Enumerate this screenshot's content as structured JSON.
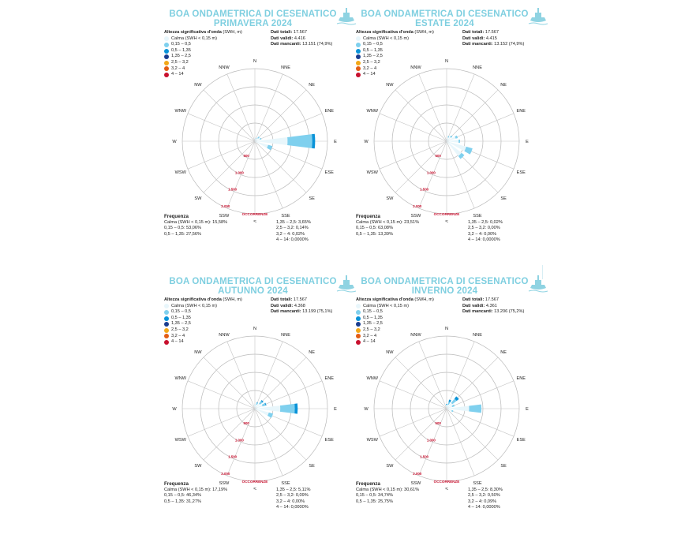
{
  "chart_data": [
    {
      "type": "wind-rose",
      "title_line1": "BOA ONDAMETRICA DI CESENATICO",
      "title_line2": "PRIMAVERA 2024",
      "legend_title": "Altezza significativa d'onda",
      "legend_unit": "(SWH, m)",
      "classes": [
        {
          "label": "Calma (SWH < 0,15 m)",
          "color": "#e8f6fb"
        },
        {
          "label": "0,15 – 0,5",
          "color": "#7fd0ee"
        },
        {
          "label": "0,5 – 1,35",
          "color": "#0a93d8"
        },
        {
          "label": "1,35 – 2,5",
          "color": "#1a3d8f"
        },
        {
          "label": "2,5 – 3,2",
          "color": "#f3a817"
        },
        {
          "label": "3,2 – 4",
          "color": "#e35d14"
        },
        {
          "label": "4 – 14",
          "color": "#c8102e"
        }
      ],
      "dati_totali_label": "Dati totali:",
      "dati_totali": "17.567",
      "dati_validi_label": "Dati validi:",
      "dati_validi": "4.416",
      "dati_mancanti_label": "Dati mancanti:",
      "dati_mancanti": "13.151 (74,9%)",
      "directions": [
        "N",
        "NNE",
        "NE",
        "ENE",
        "E",
        "ESE",
        "SE",
        "SSE",
        "S",
        "SSW",
        "SW",
        "WSW",
        "W",
        "WNW",
        "NW",
        "NNW"
      ],
      "radial_labels": [
        "500",
        "1.000",
        "1.500",
        "2.000"
      ],
      "radial_title": "OCCORRENZE",
      "rmax": 2000,
      "sectors": [
        {
          "dir": "N",
          "segments": [
            40,
            10
          ]
        },
        {
          "dir": "NNE",
          "segments": [
            70,
            25
          ]
        },
        {
          "dir": "NE",
          "segments": [
            110,
            55
          ]
        },
        {
          "dir": "ENE",
          "segments": [
            150,
            40
          ]
        },
        {
          "dir": "E",
          "segments": [
            900,
            680,
            80
          ]
        },
        {
          "dir": "ESE",
          "segments": [
            380,
            120
          ]
        },
        {
          "dir": "SE",
          "segments": [
            60
          ]
        },
        {
          "dir": "SSE",
          "segments": [
            30
          ]
        },
        {
          "dir": "S",
          "segments": [
            20
          ]
        },
        {
          "dir": "SSW",
          "segments": [
            10
          ]
        },
        {
          "dir": "SW",
          "segments": [
            10
          ]
        },
        {
          "dir": "WSW",
          "segments": [
            10
          ]
        },
        {
          "dir": "W",
          "segments": [
            15
          ]
        },
        {
          "dir": "WNW",
          "segments": [
            10
          ]
        },
        {
          "dir": "NW",
          "segments": [
            15
          ]
        },
        {
          "dir": "NNW",
          "segments": [
            20
          ]
        }
      ],
      "freq_title": "Frequenza",
      "freq": [
        "Calma (SWH < 0,15 m): 15,58%",
        "0,15 – 0,5: 53,06%",
        "0,5 – 1,35: 27,56%",
        "1,35 – 2,5: 3,65%",
        "2,5 – 3,2: 0,14%",
        "3,2 – 4: 0,02%",
        "4 – 14: 0,0000%"
      ]
    },
    {
      "type": "wind-rose",
      "title_line1": "BOA ONDAMETRICA DI CESENATICO",
      "title_line2": "ESTATE 2024",
      "legend_title": "Altezza significativa d'onda",
      "legend_unit": "(SWH, m)",
      "classes": [
        {
          "label": "Calma (SWH < 0,15 m)",
          "color": "#e8f6fb"
        },
        {
          "label": "0,15 – 0,5",
          "color": "#7fd0ee"
        },
        {
          "label": "0,5 – 1,35",
          "color": "#0a93d8"
        },
        {
          "label": "1,35 – 2,5",
          "color": "#1a3d8f"
        },
        {
          "label": "2,5 – 3,2",
          "color": "#f3a817"
        },
        {
          "label": "3,2 – 4",
          "color": "#e35d14"
        },
        {
          "label": "4 – 14",
          "color": "#c8102e"
        }
      ],
      "dati_totali_label": "Dati totali:",
      "dati_totali": "17.567",
      "dati_validi_label": "Dati validi:",
      "dati_validi": "4.415",
      "dati_mancanti_label": "Dati mancanti:",
      "dati_mancanti": "13.152 (74,9%)",
      "directions": [
        "N",
        "NNE",
        "NE",
        "ENE",
        "E",
        "ESE",
        "SE",
        "SSE",
        "S",
        "SSW",
        "SW",
        "WSW",
        "W",
        "WNW",
        "NW",
        "NNW"
      ],
      "radial_labels": [
        "500",
        "1.000",
        "1.500",
        "2.000"
      ],
      "radial_title": "OCCORRENZE",
      "rmax": 2000,
      "sectors": [
        {
          "dir": "N",
          "segments": [
            50,
            10
          ]
        },
        {
          "dir": "NNE",
          "segments": [
            110,
            40
          ]
        },
        {
          "dir": "NE",
          "segments": [
            150,
            50
          ]
        },
        {
          "dir": "ENE",
          "segments": [
            260,
            60
          ]
        },
        {
          "dir": "E",
          "segments": [
            330,
            40
          ]
        },
        {
          "dir": "ESE",
          "segments": [
            560,
            180
          ]
        },
        {
          "dir": "SE",
          "segments": [
            520,
            100
          ]
        },
        {
          "dir": "SSE",
          "segments": [
            60
          ]
        },
        {
          "dir": "S",
          "segments": [
            25
          ]
        },
        {
          "dir": "SSW",
          "segments": [
            15
          ]
        },
        {
          "dir": "SW",
          "segments": [
            10
          ]
        },
        {
          "dir": "WSW",
          "segments": [
            10
          ]
        },
        {
          "dir": "W",
          "segments": [
            15
          ]
        },
        {
          "dir": "WNW",
          "segments": [
            10
          ]
        },
        {
          "dir": "NW",
          "segments": [
            15
          ]
        },
        {
          "dir": "NNW",
          "segments": [
            25
          ]
        }
      ],
      "freq_title": "Frequenza",
      "freq": [
        "Calma (SWH < 0,15 m): 23,51%",
        "0,15 – 0,5: 63,08%",
        "0,5 – 1,35: 13,39%",
        "1,35 – 2,5: 0,02%",
        "2,5 – 3,2: 0,00%",
        "3,2 – 4: 0,00%",
        "4 – 14: 0,0000%"
      ]
    },
    {
      "type": "wind-rose",
      "title_line1": "BOA ONDAMETRICA DI CESENATICO",
      "title_line2": "AUTUNNO 2024",
      "legend_title": "Altezza significativa d'onda",
      "legend_unit": "(SWH, m)",
      "classes": [
        {
          "label": "Calma (SWH < 0,15 m)",
          "color": "#e8f6fb"
        },
        {
          "label": "0,15 – 0,5",
          "color": "#7fd0ee"
        },
        {
          "label": "0,5 – 1,35",
          "color": "#0a93d8"
        },
        {
          "label": "1,35 – 2,5",
          "color": "#1a3d8f"
        },
        {
          "label": "2,5 – 3,2",
          "color": "#f3a817"
        },
        {
          "label": "3,2 – 4",
          "color": "#e35d14"
        },
        {
          "label": "4 – 14",
          "color": "#c8102e"
        }
      ],
      "dati_totali_label": "Dati totali:",
      "dati_totali": "17.567",
      "dati_validi_label": "Dati validi:",
      "dati_validi": "4.368",
      "dati_mancanti_label": "Dati mancanti:",
      "dati_mancanti": "13.199 (75,1%)",
      "directions": [
        "N",
        "NNE",
        "NE",
        "ENE",
        "E",
        "ESE",
        "SE",
        "SSE",
        "S",
        "SSW",
        "SW",
        "WSW",
        "W",
        "WNW",
        "NW",
        "NNW"
      ],
      "radial_labels": [
        "500",
        "1.000",
        "1.500",
        "2.000"
      ],
      "radial_title": "OCCORRENZE",
      "rmax": 2000,
      "sectors": [
        {
          "dir": "N",
          "segments": [
            90,
            20
          ]
        },
        {
          "dir": "NNE",
          "segments": [
            120,
            50,
            10
          ]
        },
        {
          "dir": "NE",
          "segments": [
            180,
            90,
            30
          ]
        },
        {
          "dir": "ENE",
          "segments": [
            220,
            90,
            20
          ]
        },
        {
          "dir": "E",
          "segments": [
            700,
            400,
            80
          ]
        },
        {
          "dir": "ESE",
          "segments": [
            400,
            120
          ]
        },
        {
          "dir": "SE",
          "segments": [
            70
          ]
        },
        {
          "dir": "SSE",
          "segments": [
            30
          ]
        },
        {
          "dir": "S",
          "segments": [
            20
          ]
        },
        {
          "dir": "SSW",
          "segments": [
            10
          ]
        },
        {
          "dir": "SW",
          "segments": [
            10
          ]
        },
        {
          "dir": "WSW",
          "segments": [
            10
          ]
        },
        {
          "dir": "W",
          "segments": [
            15
          ]
        },
        {
          "dir": "WNW",
          "segments": [
            10
          ]
        },
        {
          "dir": "NW",
          "segments": [
            20
          ]
        },
        {
          "dir": "NNW",
          "segments": [
            40
          ]
        }
      ],
      "freq_title": "Frequenza",
      "freq": [
        "Calma (SWH < 0,15 m): 17,19%",
        "0,15 – 0,5: 46,34%",
        "0,5 – 1,35: 31,27%",
        "1,35 – 2,5: 5,11%",
        "2,5 – 3,2: 0,09%",
        "3,2 – 4: 0,00%",
        "4 – 14: 0,0000%"
      ]
    },
    {
      "type": "wind-rose",
      "title_line1": "BOA ONDAMETRICA DI CESENATICO",
      "title_line2": "INVERNO 2024",
      "legend_title": "Altezza significativa d'onda",
      "legend_unit": "(SWH, m)",
      "classes": [
        {
          "label": "Calma (SWH < 0,15 m)",
          "color": "#e8f6fb"
        },
        {
          "label": "0,15 – 0,5",
          "color": "#7fd0ee"
        },
        {
          "label": "0,5 – 1,35",
          "color": "#0a93d8"
        },
        {
          "label": "1,35 – 2,5",
          "color": "#1a3d8f"
        },
        {
          "label": "2,5 – 3,2",
          "color": "#f3a817"
        },
        {
          "label": "3,2 – 4",
          "color": "#e35d14"
        },
        {
          "label": "4 – 14",
          "color": "#c8102e"
        }
      ],
      "dati_totali_label": "Dati totali:",
      "dati_totali": "17.567",
      "dati_validi_label": "Dati validi:",
      "dati_validi": "4.361",
      "dati_mancanti_label": "Dati mancanti:",
      "dati_mancanti": "13.206 (75,2%)",
      "directions": [
        "N",
        "NNE",
        "NE",
        "ENE",
        "E",
        "ESE",
        "SE",
        "SSE",
        "S",
        "SSW",
        "SW",
        "WSW",
        "W",
        "WNW",
        "NW",
        "NNW"
      ],
      "radial_labels": [
        "500",
        "1.000",
        "1.500",
        "2.000"
      ],
      "radial_title": "OCCORRENZE",
      "rmax": 2000,
      "sectors": [
        {
          "dir": "N",
          "segments": [
            80,
            30,
            20
          ]
        },
        {
          "dir": "NNE",
          "segments": [
            120,
            80,
            60
          ]
        },
        {
          "dir": "NE",
          "segments": [
            200,
            150,
            80
          ]
        },
        {
          "dir": "ENE",
          "segments": [
            160,
            70
          ]
        },
        {
          "dir": "E",
          "segments": [
            620,
            340
          ]
        },
        {
          "dir": "ESE",
          "segments": [
            150,
            40
          ]
        },
        {
          "dir": "SE",
          "segments": [
            50
          ]
        },
        {
          "dir": "SSE",
          "segments": [
            30
          ]
        },
        {
          "dir": "S",
          "segments": [
            20
          ]
        },
        {
          "dir": "SSW",
          "segments": [
            10
          ]
        },
        {
          "dir": "SW",
          "segments": [
            10
          ]
        },
        {
          "dir": "WSW",
          "segments": [
            10
          ]
        },
        {
          "dir": "W",
          "segments": [
            15
          ]
        },
        {
          "dir": "WNW",
          "segments": [
            10
          ]
        },
        {
          "dir": "NW",
          "segments": [
            20
          ]
        },
        {
          "dir": "NNW",
          "segments": [
            40
          ]
        }
      ],
      "freq_title": "Frequenza",
      "freq": [
        "Calma (SWH < 0,15 m): 30,61%",
        "0,15 – 0,5: 34,74%",
        "0,5 – 1,35: 25,75%",
        "1,35 – 2,5: 8,30%",
        "2,5 – 3,2: 0,50%",
        "3,2 – 4: 0,09%",
        "4 – 14: 0,0000%"
      ]
    }
  ]
}
